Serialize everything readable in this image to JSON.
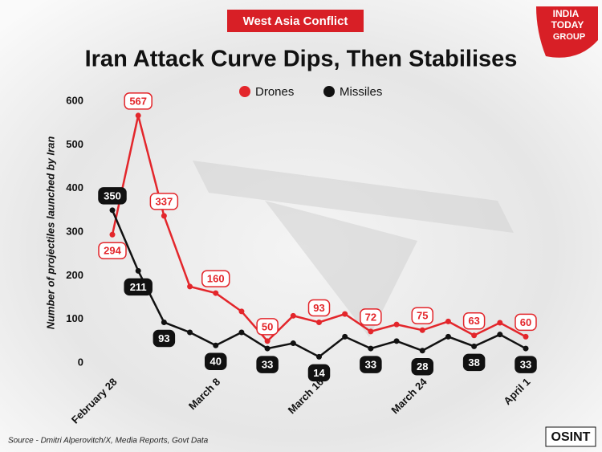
{
  "tag": "West Asia Conflict",
  "brand": [
    "INDIA",
    "TODAY",
    "GROUP"
  ],
  "source": "Source - Dmitri Alperovitch/X, Media Reports, Govt Data",
  "badge": "OSINT",
  "chart_data": {
    "type": "line",
    "title": "Iran Attack Curve Dips, Then Stabilises",
    "y_label": "Number of projectiles launched by Iran",
    "categories": [
      "February 28",
      null,
      null,
      null,
      "March 8",
      null,
      null,
      null,
      "March 16",
      null,
      null,
      null,
      "March 24",
      null,
      null,
      null,
      "April 1"
    ],
    "series": [
      {
        "name": "Drones",
        "color": "#e3262b",
        "values": [
          294,
          567,
          337,
          175,
          160,
          118,
          50,
          108,
          93,
          112,
          72,
          88,
          75,
          95,
          63,
          92,
          60
        ],
        "value_labels": [
          "294",
          "567",
          "337",
          null,
          "160",
          null,
          "50",
          null,
          "93",
          null,
          "72",
          null,
          "75",
          null,
          "63",
          null,
          "60"
        ]
      },
      {
        "name": "Missiles",
        "color": "#111111",
        "values": [
          350,
          211,
          93,
          70,
          40,
          70,
          33,
          45,
          14,
          60,
          33,
          50,
          28,
          60,
          38,
          65,
          33
        ],
        "value_labels": [
          "350",
          "211",
          "93",
          null,
          "40",
          null,
          "33",
          null,
          "14",
          null,
          "33",
          null,
          "28",
          null,
          "38",
          null,
          "33"
        ]
      }
    ],
    "ylim": [
      0,
      600
    ],
    "yticks": [
      0,
      100,
      200,
      300,
      400,
      500,
      600
    ],
    "grid": false,
    "legend": "top"
  }
}
